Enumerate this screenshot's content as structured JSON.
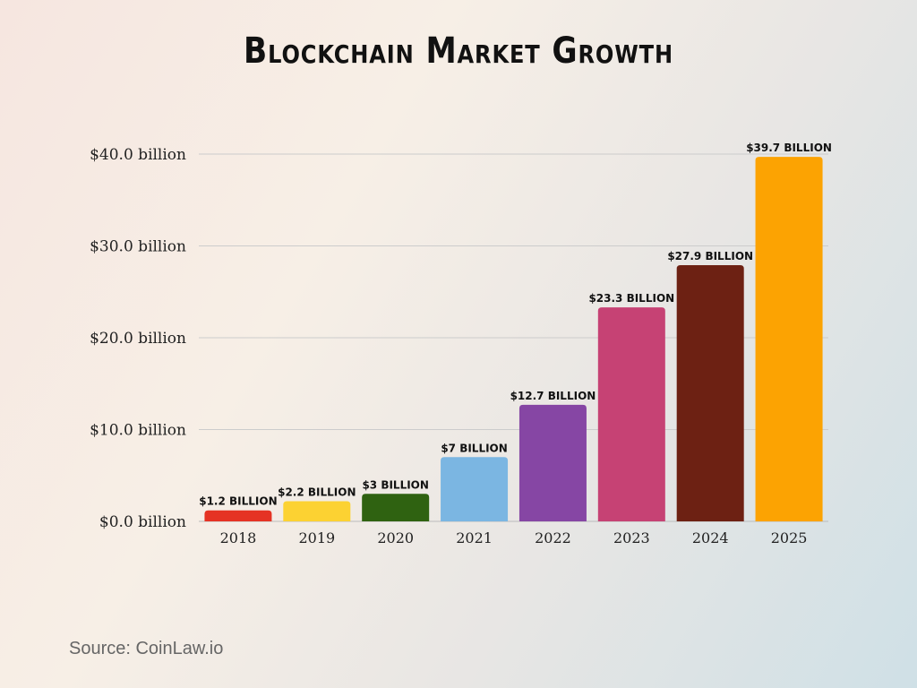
{
  "chart_data": {
    "type": "bar",
    "title": "Blockchain Market Growth",
    "categories": [
      "2018",
      "2019",
      "2020",
      "2021",
      "2022",
      "2023",
      "2024",
      "2025"
    ],
    "values": [
      1.2,
      2.2,
      3,
      7,
      12.7,
      23.3,
      27.9,
      39.7
    ],
    "data_labels": [
      "$1.2 billion",
      "$2.2 billion",
      "$3 billion",
      "$7 billion",
      "$12.7 billion",
      "$23.3 billion",
      "$27.9 billion",
      "$39.7 billion"
    ],
    "colors": [
      "#e53324",
      "#fcd232",
      "#2f6211",
      "#7bb6e2",
      "#8646a4",
      "#c64274",
      "#6d2113",
      "#fca302"
    ],
    "yticks": [
      0,
      10,
      20,
      30,
      40
    ],
    "ytick_labels": [
      "$0.0 billion",
      "$10.0 billion",
      "$20.0 billion",
      "$30.0 billion",
      "$40.0 billion"
    ],
    "ylim": [
      0,
      40
    ],
    "xlabel": "",
    "ylabel": "",
    "grid": true
  },
  "source": "Source: CoinLaw.io"
}
